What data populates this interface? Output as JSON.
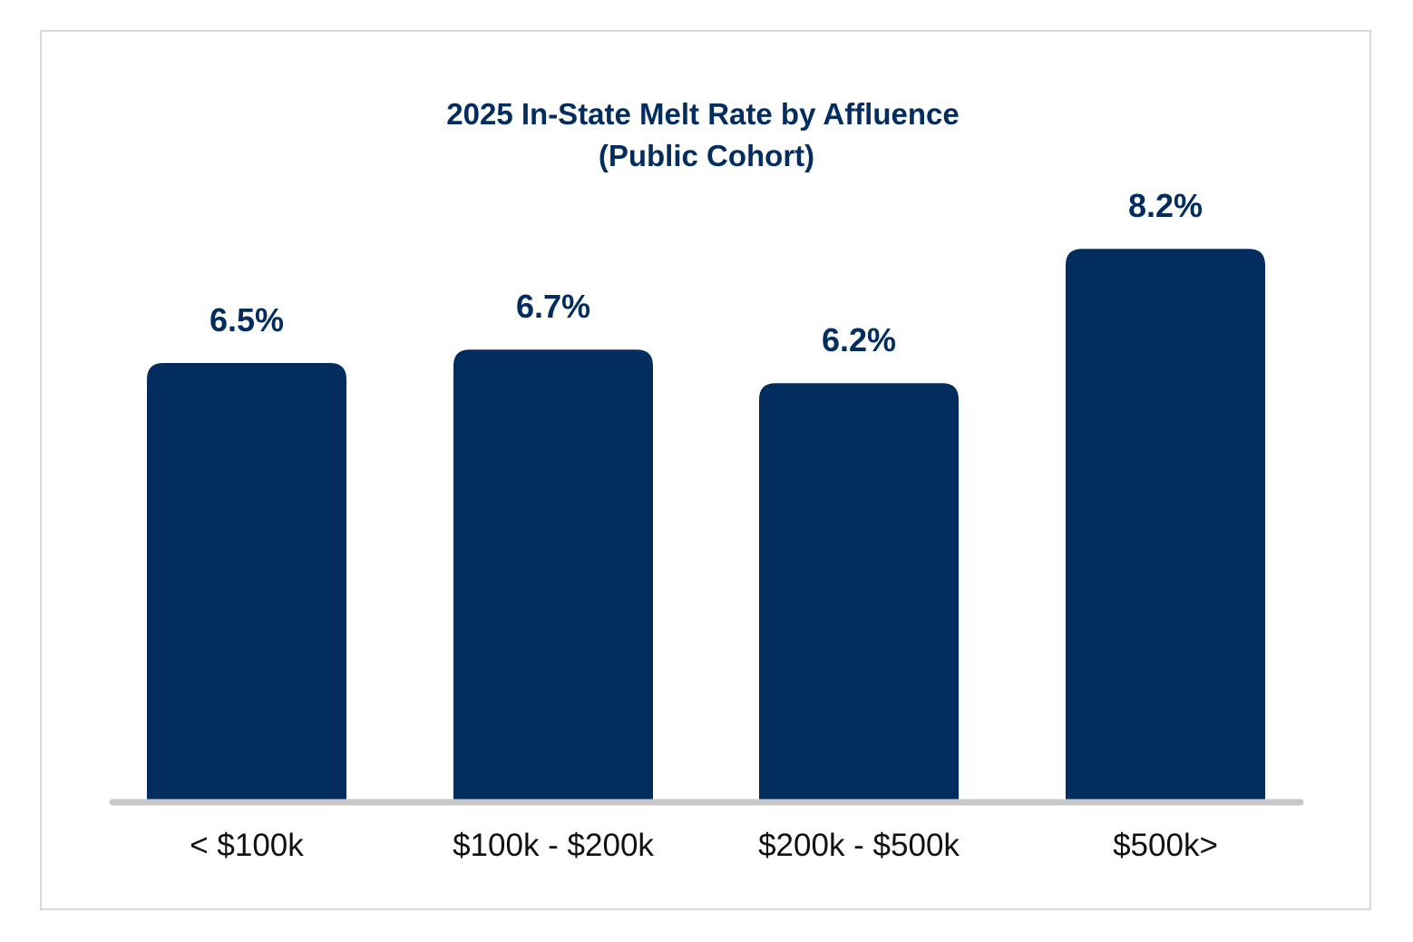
{
  "chart_data": {
    "type": "bar",
    "title_line1": "2025 In-State Melt Rate by Affluence",
    "title_line2": "(Public Cohort)",
    "categories": [
      "< $100k",
      "$100k - $200k",
      "$200k - $500k",
      "$500k>"
    ],
    "values": [
      6.5,
      6.7,
      6.2,
      8.2
    ],
    "value_labels": [
      "6.5%",
      "6.7%",
      "6.2%",
      "8.2%"
    ],
    "xlabel": "",
    "ylabel": "",
    "grid": false,
    "legend": "none"
  },
  "colors": {
    "bar": "#022d5e",
    "title": "#022d5e",
    "value_label": "#022d5e",
    "category_label": "#111111",
    "baseline": "#c8c8c8"
  }
}
